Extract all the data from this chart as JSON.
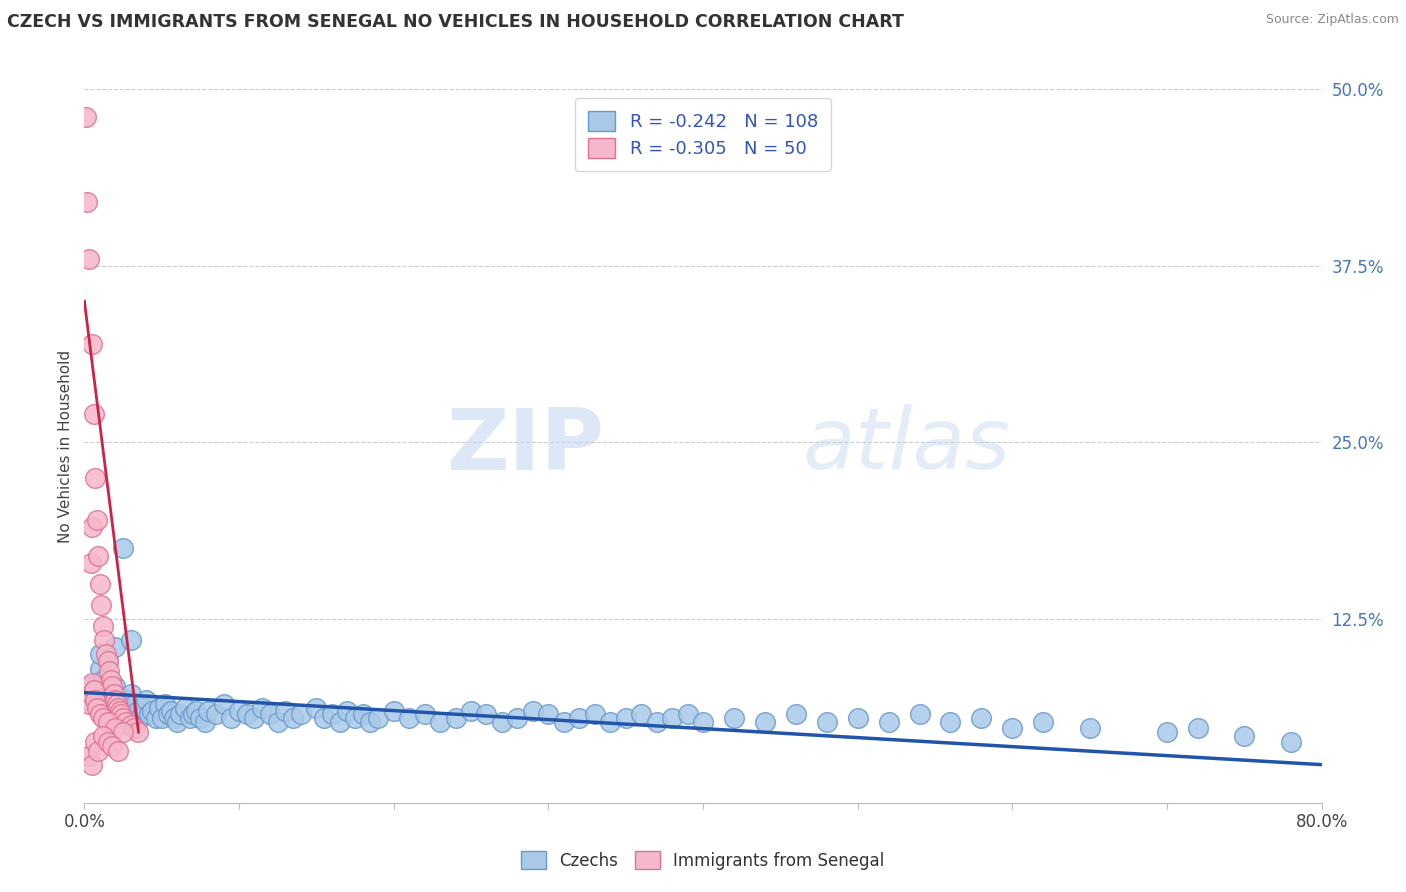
{
  "title": "CZECH VS IMMIGRANTS FROM SENEGAL NO VEHICLES IN HOUSEHOLD CORRELATION CHART",
  "source_text": "Source: ZipAtlas.com",
  "ylabel": "No Vehicles in Household",
  "xlim": [
    0.0,
    0.8
  ],
  "ylim": [
    -0.005,
    0.5
  ],
  "ytick_positions": [
    0.0,
    0.125,
    0.25,
    0.375,
    0.5
  ],
  "ytick_labels": [
    "",
    "12.5%",
    "25.0%",
    "37.5%",
    "50.0%"
  ],
  "legend_r1": "-0.242",
  "legend_n1": "108",
  "legend_r2": "-0.305",
  "legend_n2": "50",
  "blue_color": "#aac9e8",
  "blue_edge": "#6699cc",
  "pink_color": "#f5b8ca",
  "pink_edge": "#e07090",
  "trend_blue": "#2255aa",
  "trend_pink": "#cc2244",
  "watermark_color": "#dce8f5",
  "blue_scatter_x": [
    0.003,
    0.005,
    0.007,
    0.009,
    0.01,
    0.012,
    0.013,
    0.015,
    0.016,
    0.017,
    0.018,
    0.019,
    0.02,
    0.021,
    0.022,
    0.023,
    0.025,
    0.026,
    0.027,
    0.028,
    0.03,
    0.032,
    0.033,
    0.035,
    0.036,
    0.038,
    0.04,
    0.042,
    0.044,
    0.046,
    0.048,
    0.05,
    0.052,
    0.054,
    0.056,
    0.058,
    0.06,
    0.062,
    0.065,
    0.068,
    0.07,
    0.072,
    0.075,
    0.078,
    0.08,
    0.085,
    0.09,
    0.095,
    0.1,
    0.105,
    0.11,
    0.115,
    0.12,
    0.125,
    0.13,
    0.135,
    0.14,
    0.15,
    0.155,
    0.16,
    0.165,
    0.17,
    0.175,
    0.18,
    0.185,
    0.19,
    0.2,
    0.21,
    0.22,
    0.23,
    0.24,
    0.25,
    0.26,
    0.27,
    0.28,
    0.29,
    0.3,
    0.31,
    0.32,
    0.33,
    0.34,
    0.35,
    0.36,
    0.37,
    0.38,
    0.39,
    0.4,
    0.42,
    0.44,
    0.46,
    0.48,
    0.5,
    0.52,
    0.54,
    0.56,
    0.58,
    0.6,
    0.62,
    0.65,
    0.7,
    0.72,
    0.75,
    0.78,
    0.01,
    0.015,
    0.02,
    0.025,
    0.03
  ],
  "blue_scatter_y": [
    0.078,
    0.072,
    0.068,
    0.065,
    0.09,
    0.082,
    0.075,
    0.07,
    0.068,
    0.072,
    0.065,
    0.06,
    0.078,
    0.068,
    0.062,
    0.07,
    0.058,
    0.065,
    0.055,
    0.068,
    0.072,
    0.058,
    0.065,
    0.06,
    0.055,
    0.062,
    0.068,
    0.058,
    0.06,
    0.055,
    0.062,
    0.055,
    0.065,
    0.058,
    0.06,
    0.055,
    0.052,
    0.058,
    0.062,
    0.055,
    0.058,
    0.06,
    0.055,
    0.052,
    0.06,
    0.058,
    0.065,
    0.055,
    0.06,
    0.058,
    0.055,
    0.062,
    0.058,
    0.052,
    0.06,
    0.055,
    0.058,
    0.062,
    0.055,
    0.058,
    0.052,
    0.06,
    0.055,
    0.058,
    0.052,
    0.055,
    0.06,
    0.055,
    0.058,
    0.052,
    0.055,
    0.06,
    0.058,
    0.052,
    0.055,
    0.06,
    0.058,
    0.052,
    0.055,
    0.058,
    0.052,
    0.055,
    0.058,
    0.052,
    0.055,
    0.058,
    0.052,
    0.055,
    0.052,
    0.058,
    0.052,
    0.055,
    0.052,
    0.058,
    0.052,
    0.055,
    0.048,
    0.052,
    0.048,
    0.045,
    0.048,
    0.042,
    0.038,
    0.1,
    0.095,
    0.105,
    0.175,
    0.11
  ],
  "pink_scatter_x": [
    0.001,
    0.002,
    0.003,
    0.004,
    0.005,
    0.005,
    0.006,
    0.007,
    0.008,
    0.009,
    0.01,
    0.011,
    0.012,
    0.013,
    0.014,
    0.015,
    0.016,
    0.017,
    0.018,
    0.019,
    0.02,
    0.021,
    0.022,
    0.023,
    0.024,
    0.025,
    0.027,
    0.03,
    0.032,
    0.035,
    0.002,
    0.003,
    0.004,
    0.005,
    0.006,
    0.007,
    0.008,
    0.01,
    0.012,
    0.015,
    0.02,
    0.025,
    0.003,
    0.005,
    0.007,
    0.009,
    0.012,
    0.015,
    0.018,
    0.022
  ],
  "pink_scatter_y": [
    0.48,
    0.42,
    0.38,
    0.165,
    0.19,
    0.32,
    0.27,
    0.225,
    0.195,
    0.17,
    0.15,
    0.135,
    0.12,
    0.11,
    0.1,
    0.095,
    0.088,
    0.082,
    0.078,
    0.072,
    0.068,
    0.065,
    0.062,
    0.06,
    0.058,
    0.055,
    0.052,
    0.05,
    0.048,
    0.045,
    0.068,
    0.065,
    0.072,
    0.08,
    0.075,
    0.068,
    0.062,
    0.058,
    0.055,
    0.052,
    0.048,
    0.045,
    0.028,
    0.022,
    0.038,
    0.032,
    0.042,
    0.038,
    0.035,
    0.032
  ],
  "blue_trend_x": [
    0.0,
    0.8
  ],
  "blue_trend_y": [
    0.073,
    0.022
  ],
  "pink_trend_x": [
    0.0,
    0.035
  ],
  "pink_trend_y": [
    0.35,
    0.045
  ]
}
